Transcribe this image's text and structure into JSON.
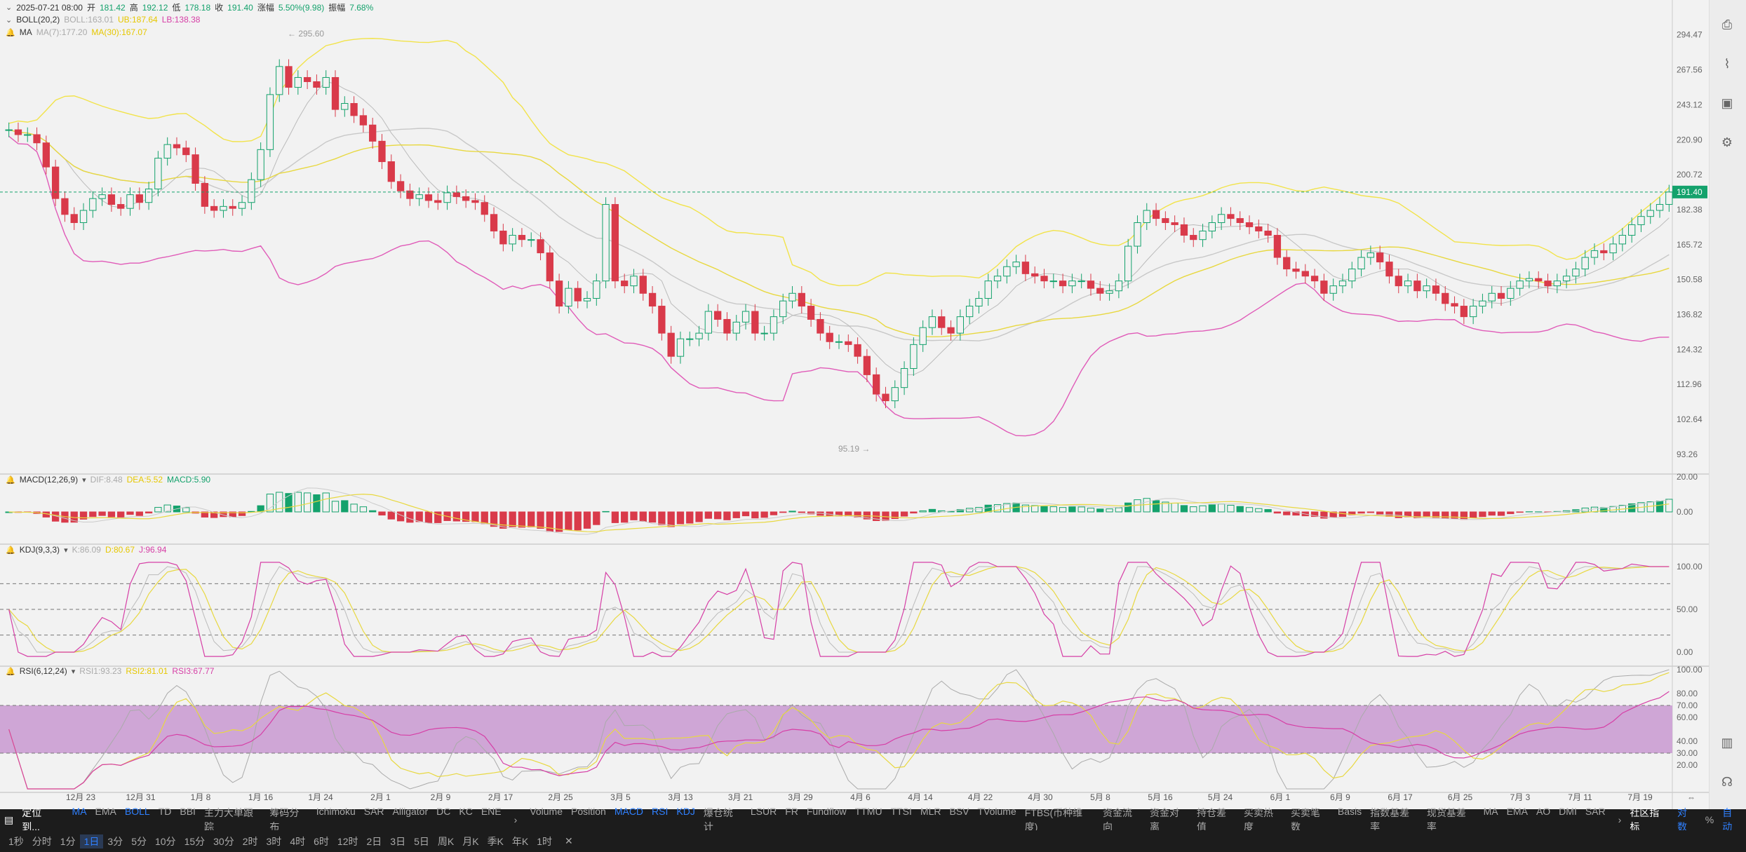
{
  "ohlc_header": {
    "date": "2025-07-21 08:00",
    "open_label": "开",
    "open": "181.42",
    "high_label": "高",
    "high": "192.12",
    "low_label": "低",
    "low": "178.18",
    "close_label": "收",
    "close": "191.40",
    "change_label": "涨幅",
    "change": "5.50%(9.98)",
    "amp_label": "振幅",
    "amp": "7.68%"
  },
  "boll_legend": {
    "name": "BOLL(20,2)",
    "boll": "BOLL:163.01",
    "ub": "UB:187.64",
    "lb": "LB:138.38"
  },
  "ma_legend": {
    "name": "MA",
    "ma7": "MA(7):177.20",
    "ma30": "MA(30):167.07"
  },
  "macd_legend": {
    "name": "MACD(12,26,9)",
    "dif": "DIF:8.48",
    "dea": "DEA:5.52",
    "macd": "MACD:5.90"
  },
  "kdj_legend": {
    "name": "KDJ(9,3,3)",
    "k": "K:86.09",
    "d": "D:80.67",
    "j": "J:96.94"
  },
  "rsi_legend": {
    "name": "RSI(6,12,24)",
    "rsi1": "RSI1:93.23",
    "rsi2": "RSI2:81.01",
    "rsi3": "RSI3:67.77"
  },
  "chart_data": {
    "type": "candlestick",
    "price_axis_ticks": [
      "294.47",
      "267.56",
      "243.12",
      "220.90",
      "200.72",
      "182.38",
      "165.72",
      "150.58",
      "136.82",
      "124.32",
      "112.96",
      "102.64",
      "93.26"
    ],
    "current_price": "191.40",
    "high_marker": "295.60",
    "low_marker": "95.19",
    "macd_axis_ticks": [
      "20.00",
      "0.00"
    ],
    "kdj_axis_ticks": [
      "100.00",
      "50.00",
      "0.00"
    ],
    "rsi_axis_ticks": [
      "100.00",
      "80.00",
      "70.00",
      "60.00",
      "40.00",
      "30.00",
      "20.00"
    ],
    "date_ticks": [
      "12月 23",
      "12月 31",
      "1月 8",
      "1月 16",
      "1月 24",
      "2月 1",
      "2月 9",
      "2月 17",
      "2月 25",
      "3月 5",
      "3月 13",
      "3月 21",
      "3月 29",
      "4月 6",
      "4月 14",
      "4月 22",
      "4月 30",
      "5月 8",
      "5月 16",
      "5月 24",
      "6月 1",
      "6月 9",
      "6月 17",
      "6月 25",
      "7月 3",
      "7月 11",
      "7月 19"
    ],
    "close_series": [
      227,
      224,
      224,
      219,
      205,
      188,
      180,
      176,
      182,
      188,
      190,
      185,
      183,
      190,
      186,
      193,
      210,
      218,
      216,
      212,
      196,
      184,
      182,
      184,
      183,
      186,
      198,
      215,
      250,
      270,
      255,
      262,
      259,
      255,
      262,
      240,
      244,
      236,
      230,
      220,
      208,
      197,
      192,
      188,
      190,
      187,
      186,
      191,
      189,
      187,
      186,
      180,
      172,
      166,
      170,
      168,
      168,
      162,
      150,
      140,
      147,
      142,
      143,
      150,
      185,
      150,
      148,
      152,
      145,
      140,
      130,
      122,
      128,
      128,
      130,
      138,
      135,
      130,
      134,
      138,
      130,
      130,
      136,
      142,
      145,
      140,
      135,
      130,
      127,
      127,
      126,
      122,
      116,
      110,
      108,
      112,
      118,
      126,
      132,
      136,
      132,
      130,
      136,
      140,
      143,
      150,
      152,
      156,
      158,
      153,
      152,
      150,
      150,
      148,
      150,
      150,
      147,
      145,
      146,
      150,
      165,
      176,
      182,
      178,
      176,
      175,
      170,
      168,
      172,
      176,
      180,
      178,
      176,
      174,
      172,
      170,
      160,
      155,
      154,
      152,
      150,
      145,
      148,
      150,
      155,
      160,
      162,
      158,
      152,
      148,
      150,
      146,
      148,
      145,
      141,
      140,
      136,
      140,
      142,
      145,
      143,
      147,
      150,
      151,
      150,
      148,
      150,
      152,
      155,
      160,
      163,
      162,
      166,
      170,
      175,
      179,
      182,
      185,
      191.4
    ],
    "volume_label": "Volume"
  },
  "toolbar": {
    "locate": "定位到...",
    "indicators": [
      "MA",
      "EMA",
      "BOLL",
      "TD",
      "BBI",
      "主力大单跟踪",
      "筹码分布",
      "Ichimoku",
      "SAR",
      "Alligator",
      "DC",
      "KC",
      "ENE"
    ],
    "sub_indicators": [
      "Volume",
      "Position",
      "MACD",
      "RSI",
      "KDJ",
      "爆仓统计",
      "LSUR",
      "FR",
      "Fundflow",
      "TTMU",
      "TTSI",
      "MLR",
      "BSV",
      "TVolume",
      "FTBS(币种维度)",
      "资金流向",
      "资金对离",
      "持仓差值",
      "买卖热度",
      "买卖笔数",
      "Basis",
      "指数基差率",
      "现货基差率",
      "MA",
      "EMA",
      "AO",
      "DMI",
      "SAR"
    ],
    "community": "社区指标",
    "log": "对数",
    "percent": "%",
    "auto": "自动",
    "intervals": [
      "1秒",
      "分时",
      "1分",
      "1日",
      "3分",
      "5分",
      "10分",
      "15分",
      "30分",
      "2时",
      "3时",
      "4时",
      "6时",
      "12时",
      "2日",
      "3日",
      "5日",
      "周K",
      "月K",
      "季K",
      "年K",
      "1时"
    ],
    "active_interval": "1日"
  }
}
